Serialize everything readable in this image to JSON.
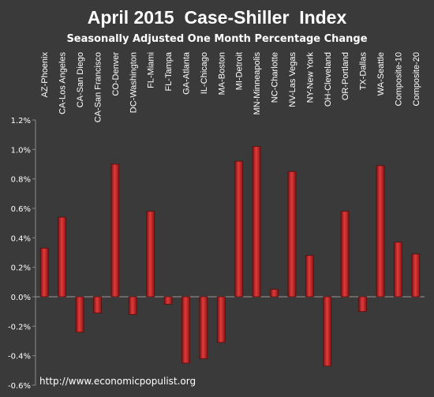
{
  "chart_data": {
    "type": "bar",
    "title": "April 2015  Case-Shiller  Index",
    "subtitle": "Seasonally Adjusted One Month Percentage Change",
    "xlabel": "",
    "ylabel": "",
    "ylim": [
      -0.6,
      1.2
    ],
    "yticks": [
      -0.6,
      -0.4,
      -0.2,
      0.0,
      0.2,
      0.4,
      0.6,
      0.8,
      1.0,
      1.2
    ],
    "ytick_labels": [
      "-0.6%",
      "-0.4%",
      "-0.2%",
      "0.0%",
      "0.2%",
      "0.4%",
      "0.6%",
      "0.8%",
      "1.0%",
      "1.2%"
    ],
    "grid": false,
    "legend": "none",
    "categories": [
      "AZ-Phoenix",
      "CA-Los Angeles",
      "CA-San Diego",
      "CA-San Francisco",
      "CO-Denver",
      "DC-Washington",
      "FL-Miami",
      "FL-Tampa",
      "GA-Atlanta",
      "IL-Chicago",
      "MA-Boston",
      "MI-Detroit",
      "MN-Minneapolis",
      "NC-Charlotte",
      "NV-Las Vegas",
      "NY-New York",
      "OH-Cleveland",
      "OR-Portland",
      "TX-Dallas",
      "WA-Seattle",
      "Composite-10",
      "Composite-20"
    ],
    "values": [
      0.33,
      0.54,
      -0.24,
      -0.11,
      0.9,
      -0.12,
      0.58,
      -0.05,
      -0.45,
      -0.42,
      -0.31,
      0.92,
      1.02,
      0.05,
      0.85,
      0.28,
      -0.47,
      0.58,
      -0.1,
      0.89,
      0.37,
      0.29
    ],
    "bar_color": "#d42a2a",
    "bar_edge_color": "#5a0d0d",
    "background_color": "#3a3a3a",
    "text_color": "#ffffff"
  },
  "footer": {
    "url": "http://www.economicpopulist.org"
  }
}
